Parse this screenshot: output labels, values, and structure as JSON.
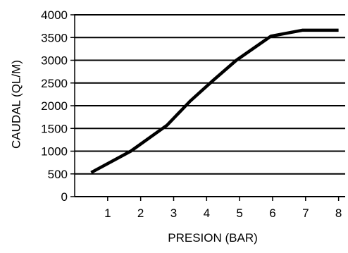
{
  "colors": {
    "line": "#000000",
    "grid": "#000000",
    "background": "#ffffff"
  },
  "chart_data": {
    "type": "line",
    "title": "",
    "xlabel": "PRESION (BAR)",
    "ylabel": "CAUDAL (QL/M)",
    "xlim": [
      0,
      8.2
    ],
    "ylim": [
      0,
      4000
    ],
    "grid": "horizontal",
    "legend": "none",
    "x_ticks": [
      {
        "value": 1,
        "label": "1"
      },
      {
        "value": 2,
        "label": "2"
      },
      {
        "value": 3,
        "label": "3"
      },
      {
        "value": 4,
        "label": "4"
      },
      {
        "value": 5,
        "label": "5"
      },
      {
        "value": 6,
        "label": "6"
      },
      {
        "value": 7,
        "label": "7"
      },
      {
        "value": 8,
        "label": "8"
      }
    ],
    "y_ticks": [
      {
        "value": 0,
        "label": "0"
      },
      {
        "value": 500,
        "label": "500"
      },
      {
        "value": 1000,
        "label": "1000"
      },
      {
        "value": 1500,
        "label": "1500"
      },
      {
        "value": 2000,
        "label": "2000"
      },
      {
        "value": 2500,
        "label": "2500"
      },
      {
        "value": 3000,
        "label": "3000"
      },
      {
        "value": 3500,
        "label": "3500"
      },
      {
        "value": 4000,
        "label": "4000"
      }
    ],
    "series": [
      {
        "x": [
          0.5,
          1.7,
          2.8,
          3.5,
          4.2,
          4.9,
          5.95,
          6.9,
          8.0
        ],
        "y": [
          530,
          1000,
          1570,
          2100,
          2560,
          3000,
          3530,
          3660,
          3660
        ]
      }
    ]
  }
}
